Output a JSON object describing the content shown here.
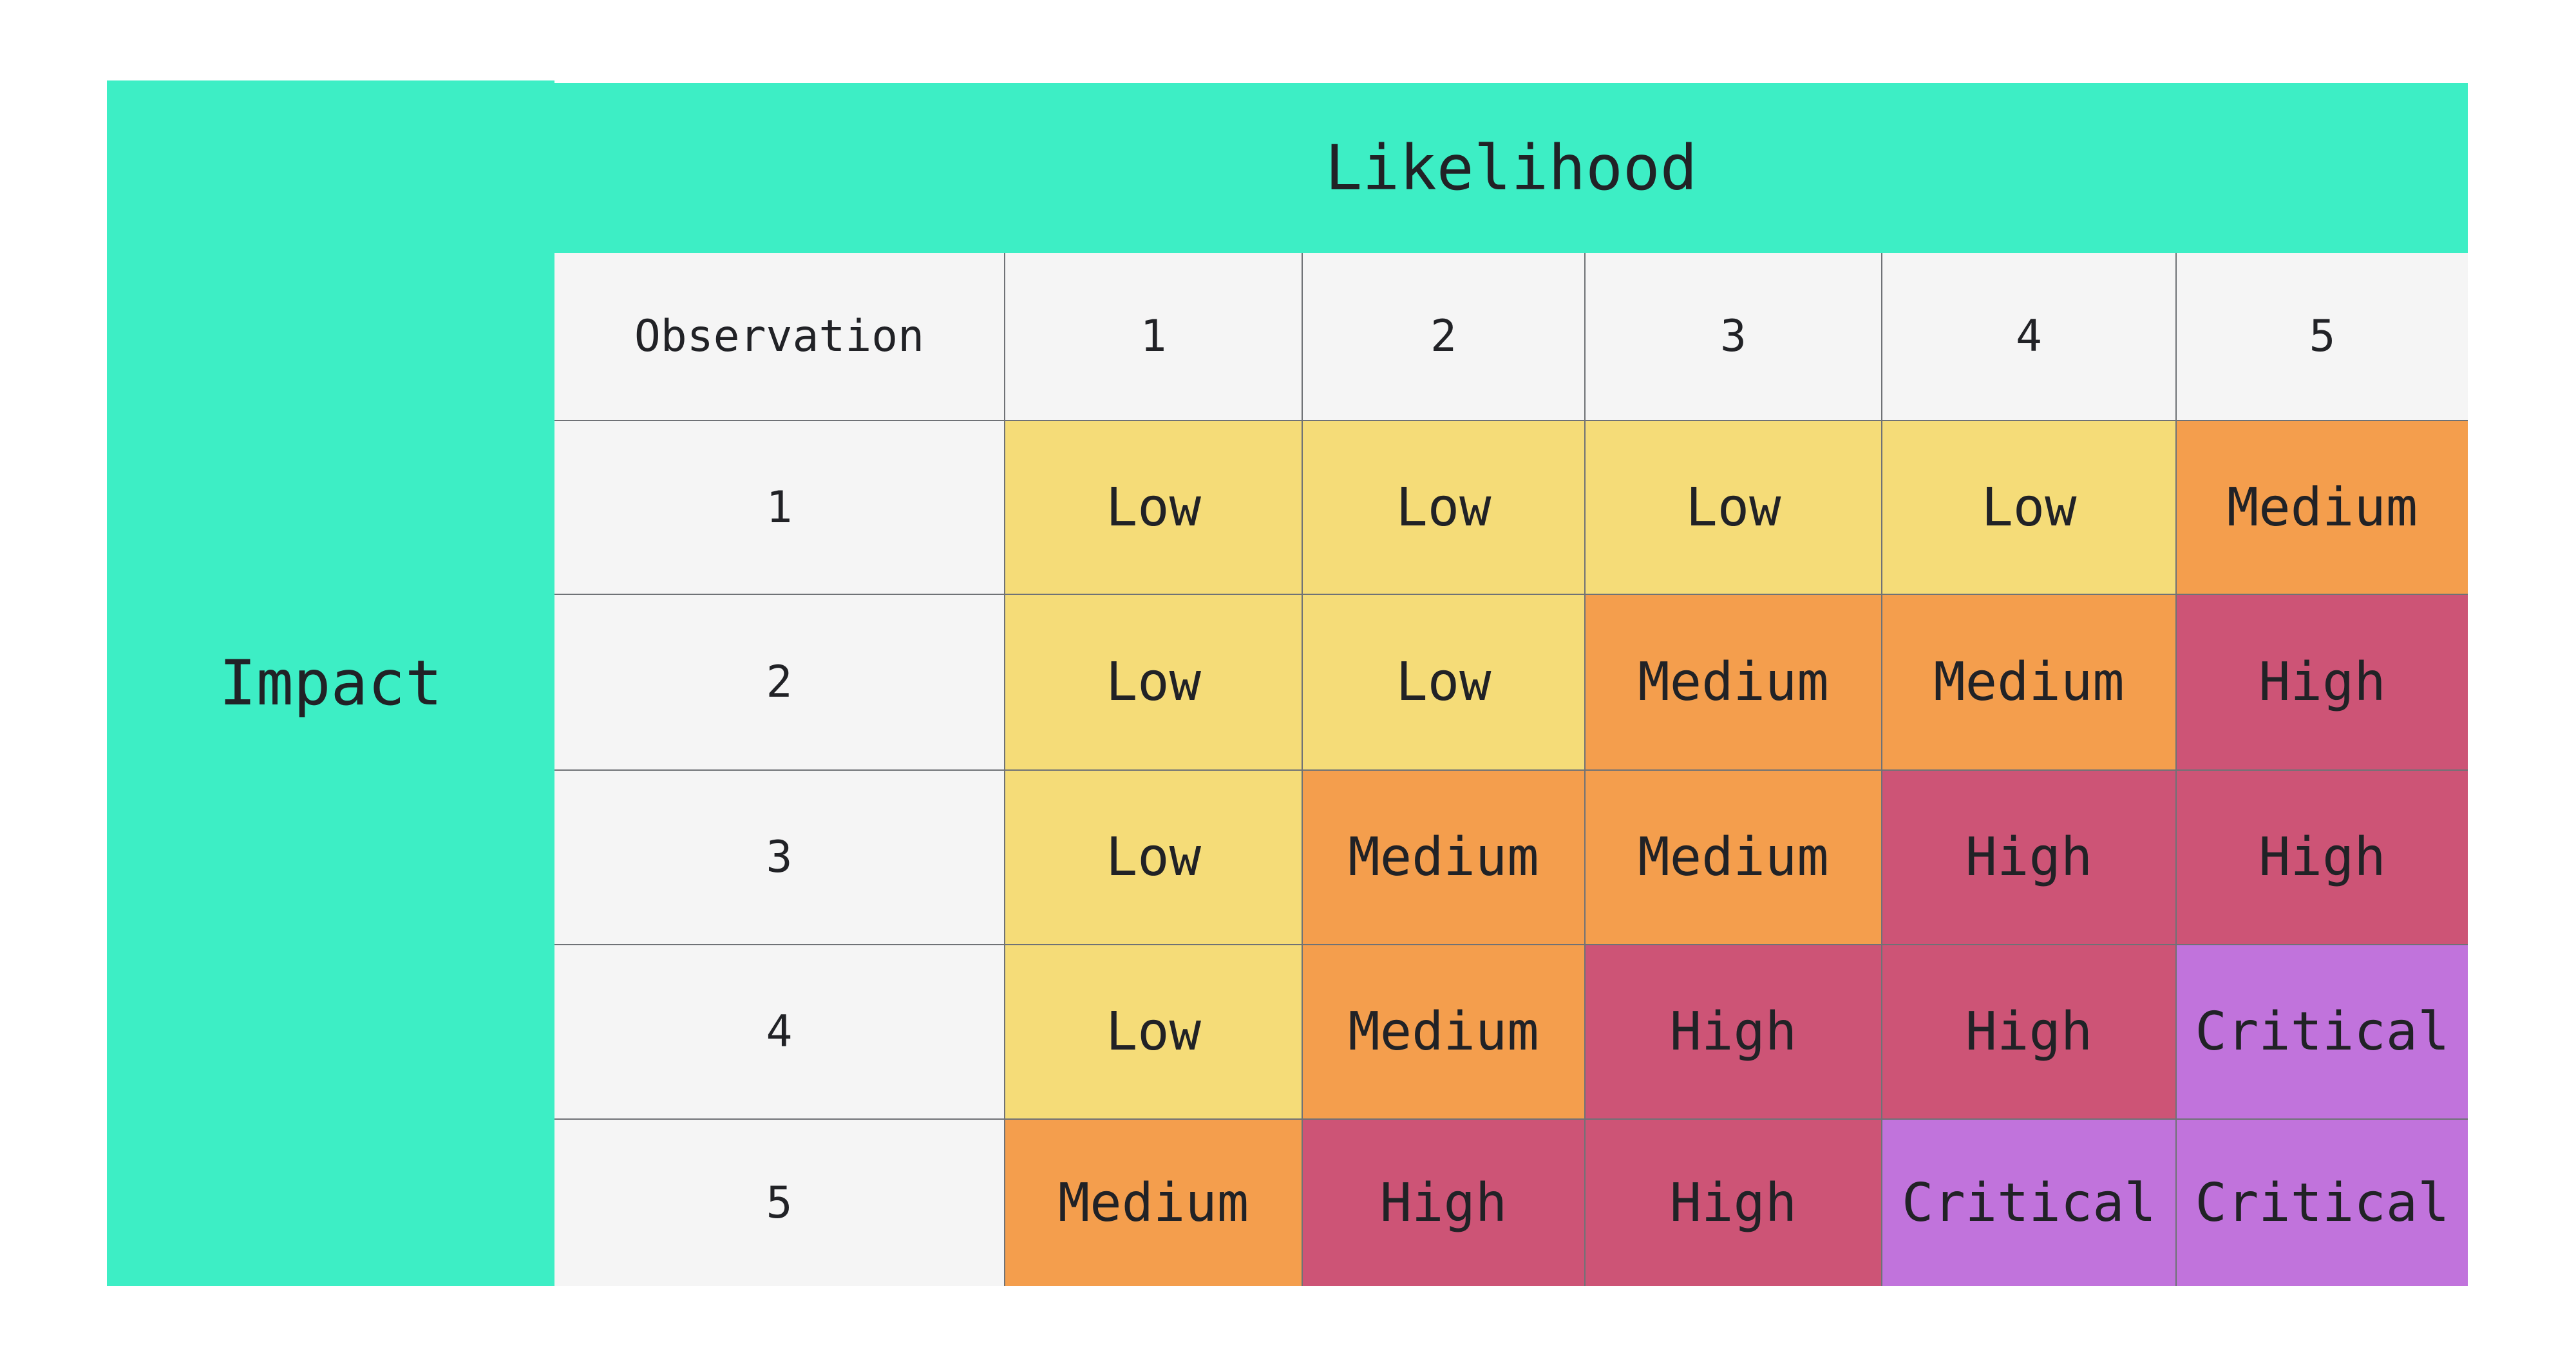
{
  "page": {
    "background": "#FFFFFF"
  },
  "colors": {
    "page_bg": "#FFFFFF",
    "axis_band": "#3DEEC5",
    "header_cell": "#F5F5F5",
    "grid_border": "#6F7276",
    "text": "#212226",
    "white_gap": "#FFFFFF"
  },
  "chart_data": {
    "type": "heatmap",
    "x_axis_label": "Likelihood",
    "y_axis_label": "Impact",
    "corner_header": "Observation",
    "x_categories": [
      "1",
      "2",
      "3",
      "4",
      "5"
    ],
    "y_categories": [
      "1",
      "2",
      "3",
      "4",
      "5"
    ],
    "values": [
      [
        "Low",
        "Low",
        "Low",
        "Low",
        "Medium"
      ],
      [
        "Low",
        "Low",
        "Medium",
        "Medium",
        "High"
      ],
      [
        "Low",
        "Medium",
        "Medium",
        "High",
        "High"
      ],
      [
        "Low",
        "Medium",
        "High",
        "High",
        "Critical"
      ],
      [
        "Medium",
        "High",
        "High",
        "Critical",
        "Critical"
      ]
    ],
    "level_colors": {
      "Low": "#F5DC78",
      "Medium": "#F49E4D",
      "High": "#CD5476",
      "Critical": "#C173DC"
    },
    "legend_position": "none",
    "grid": true
  }
}
